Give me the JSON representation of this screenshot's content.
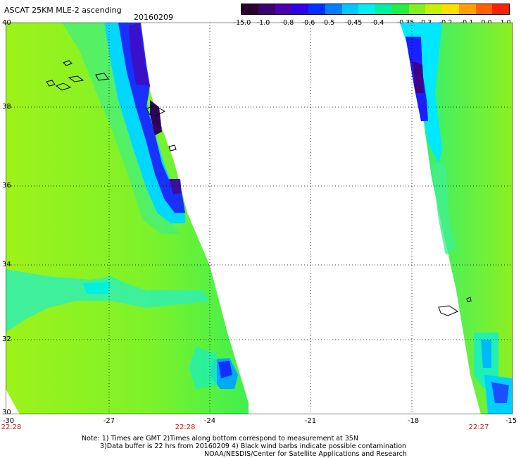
{
  "header": {
    "title": "ASCAT 25KM MLE-2 ascending",
    "date": "20160209"
  },
  "colorbar": {
    "colors": [
      "#2a002e",
      "#3c0070",
      "#4a00b0",
      "#3000e8",
      "#0030ff",
      "#0080ff",
      "#00c8ff",
      "#00f0f0",
      "#00f0a0",
      "#20f040",
      "#80f020",
      "#c8f000",
      "#ffe000",
      "#ffa000",
      "#ff6000",
      "#ff2000"
    ],
    "labels": [
      "-15.0",
      "-1.0",
      "-0.8",
      "-0.6",
      "-0.5",
      "-0.45",
      "-0.4",
      "-0.35",
      "-0.3",
      "-0.2",
      "-0.1",
      "0.0",
      "1.0"
    ]
  },
  "map": {
    "lat_labels": [
      "40",
      "38",
      "36",
      "34",
      "32",
      "30"
    ],
    "lon_labels": [
      "-30",
      "-27",
      "-24",
      "-21",
      "-18",
      "-15"
    ],
    "time_labels": [
      "22:28",
      "22:28",
      "22:27"
    ]
  },
  "notes": {
    "line1": "Note: 1) Times are GMT 2)Times along bottom correspond to measurement at 35N",
    "line2": "3)Data buffer is 22 hrs from 20160209 4) Black wind barbs indicate possible contamination",
    "line3": "NOAA/NESDIS/Center for Satellite Applications and Research"
  }
}
